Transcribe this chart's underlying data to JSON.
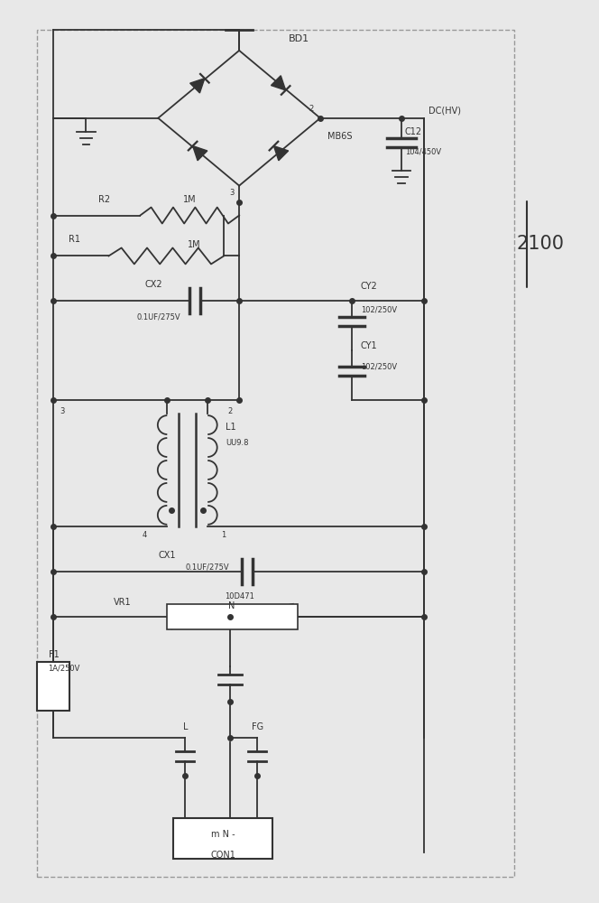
{
  "fig_width": 6.64,
  "fig_height": 10.0,
  "bg_color": "#e8e8e8",
  "border_color": "#888888",
  "line_color": "#333333",
  "label_2100": "2100",
  "bd1_label": "BD1",
  "mb6s_label": "MB6S",
  "dchv_label": "DC(HV)",
  "c12_label": "C12",
  "c12_val": "104/450V",
  "r2_label": "R2",
  "r2_val": "1M",
  "r1_label": "R1",
  "r1_val": "1M",
  "cx2_label": "CX2",
  "cx2_val": "0.1UF/275V",
  "cy2_label": "CY2",
  "cy2_val": "102/250V",
  "cy1_label": "CY1",
  "cy1_val": "102/250V",
  "l1_label": "L1",
  "l1_val": "UU9.8",
  "cx1_label": "CX1",
  "cx1_val": "0.1UF/275V",
  "vr1_label": "VR1",
  "vr1_val": "10D471",
  "f1_label": "F1",
  "f1_val": "1A/250V",
  "n_label": "N",
  "l_label": "L",
  "fg_label": "FG",
  "con1_label": "CON1",
  "con1_text": "m N -"
}
